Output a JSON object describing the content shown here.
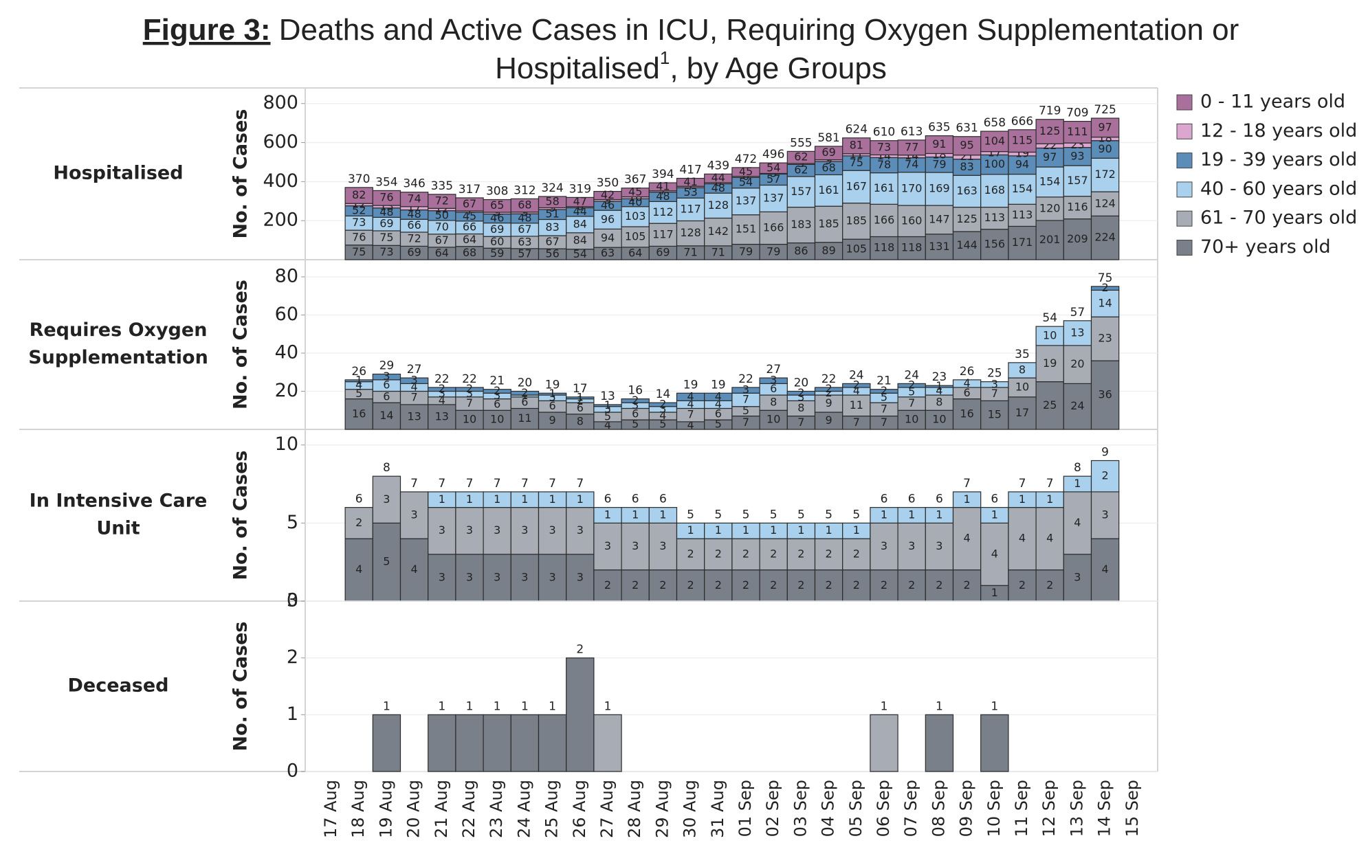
{
  "figure": {
    "label": "Figure 3:",
    "line1": "Deaths and Active Cases in ICU, Requiring Oxygen Supplementation or",
    "line2a": "Hospitalised",
    "sup": "1",
    "line2b": ", by Age Groups"
  },
  "chart_data": [
    {
      "type": "bar",
      "stacked": true,
      "title": [
        "Hospitalised"
      ],
      "ylabel": "No. of Cases",
      "segment_labels": true,
      "grid": true,
      "categories": [
        "17 Aug",
        "18 Aug",
        "19 Aug",
        "20 Aug",
        "21 Aug",
        "22 Aug",
        "23 Aug",
        "24 Aug",
        "25 Aug",
        "26 Aug",
        "27 Aug",
        "28 Aug",
        "29 Aug",
        "30 Aug",
        "31 Aug",
        "01 Sep",
        "02 Sep",
        "03 Sep",
        "04 Sep",
        "05 Sep",
        "06 Sep",
        "07 Sep",
        "08 Sep",
        "09 Sep",
        "10 Sep",
        "11 Sep",
        "12 Sep",
        "13 Sep",
        "14 Sep",
        "15 Sep"
      ],
      "ylim": [
        0,
        880
      ],
      "yticks": [
        200,
        400,
        600,
        800
      ],
      "series": [
        {
          "name": "70+ years old",
          "color": "#7a808a",
          "values": [
            null,
            75,
            73,
            69,
            64,
            68,
            59,
            57,
            56,
            54,
            63,
            64,
            69,
            71,
            71,
            79,
            79,
            86,
            89,
            105,
            118,
            118,
            131,
            144,
            156,
            171,
            201,
            209,
            224,
            null
          ]
        },
        {
          "name": "61 - 70 years old",
          "color": "#a8adb5",
          "values": [
            null,
            76,
            75,
            72,
            67,
            64,
            60,
            63,
            67,
            84,
            94,
            105,
            117,
            128,
            142,
            151,
            166,
            183,
            185,
            185,
            166,
            160,
            147,
            125,
            113,
            113,
            120,
            116,
            124,
            null
          ]
        },
        {
          "name": "40 - 60 years old",
          "color": "#a9d1ed",
          "values": [
            null,
            73,
            69,
            66,
            70,
            66,
            69,
            67,
            83,
            84,
            96,
            103,
            112,
            117,
            128,
            137,
            137,
            157,
            161,
            167,
            161,
            170,
            169,
            163,
            168,
            154,
            154,
            157,
            172,
            null
          ]
        },
        {
          "name": "19 - 39 years old",
          "color": "#5b8db8",
          "values": [
            null,
            52,
            48,
            48,
            50,
            45,
            46,
            48,
            51,
            44,
            46,
            40,
            48,
            53,
            48,
            54,
            57,
            62,
            68,
            75,
            78,
            74,
            79,
            83,
            100,
            94,
            97,
            93,
            90,
            null
          ]
        },
        {
          "name": "12 - 18 years old",
          "color": "#dba7cf",
          "values": [
            null,
            12,
            13,
            17,
            12,
            7,
            9,
            9,
            9,
            6,
            9,
            10,
            7,
            7,
            6,
            6,
            3,
            5,
            9,
            11,
            14,
            14,
            18,
            21,
            17,
            19,
            22,
            23,
            18,
            null
          ]
        },
        {
          "name": "0 - 11 years old",
          "color": "#a8709a",
          "values": [
            null,
            82,
            76,
            74,
            72,
            67,
            65,
            68,
            58,
            47,
            42,
            45,
            41,
            41,
            44,
            45,
            54,
            62,
            69,
            81,
            73,
            77,
            91,
            95,
            104,
            115,
            125,
            111,
            97,
            null
          ]
        }
      ],
      "totals": [
        null,
        370,
        354,
        346,
        335,
        317,
        308,
        312,
        324,
        319,
        350,
        367,
        394,
        417,
        439,
        472,
        496,
        555,
        581,
        624,
        610,
        613,
        635,
        631,
        658,
        666,
        719,
        709,
        725,
        null
      ]
    },
    {
      "type": "bar",
      "stacked": true,
      "title": [
        "Requires Oxygen",
        "Supplementation"
      ],
      "ylabel": "No. of Cases",
      "segment_labels": true,
      "grid": true,
      "categories": [
        "17 Aug",
        "18 Aug",
        "19 Aug",
        "20 Aug",
        "21 Aug",
        "22 Aug",
        "23 Aug",
        "24 Aug",
        "25 Aug",
        "26 Aug",
        "27 Aug",
        "28 Aug",
        "29 Aug",
        "30 Aug",
        "31 Aug",
        "01 Sep",
        "02 Sep",
        "03 Sep",
        "04 Sep",
        "05 Sep",
        "06 Sep",
        "07 Sep",
        "08 Sep",
        "09 Sep",
        "10 Sep",
        "11 Sep",
        "12 Sep",
        "13 Sep",
        "14 Sep",
        "15 Sep"
      ],
      "ylim": [
        0,
        89
      ],
      "yticks": [
        20,
        40,
        60,
        80
      ],
      "series": [
        {
          "name": "70+ years old",
          "color": "#7a808a",
          "values": [
            null,
            16,
            14,
            13,
            13,
            10,
            10,
            11,
            9,
            8,
            4,
            5,
            5,
            4,
            5,
            7,
            10,
            7,
            9,
            7,
            7,
            10,
            10,
            16,
            15,
            17,
            25,
            24,
            36,
            null
          ]
        },
        {
          "name": "61 - 70 years old",
          "color": "#a8adb5",
          "values": [
            null,
            5,
            6,
            7,
            4,
            7,
            6,
            6,
            6,
            6,
            5,
            6,
            4,
            7,
            6,
            5,
            8,
            8,
            9,
            11,
            7,
            7,
            8,
            6,
            7,
            10,
            19,
            20,
            23,
            null
          ]
        },
        {
          "name": "40 - 60 years old",
          "color": "#a9d1ed",
          "values": [
            null,
            4,
            6,
            4,
            3,
            3,
            3,
            1,
            3,
            2,
            3,
            3,
            3,
            4,
            4,
            7,
            6,
            3,
            2,
            4,
            5,
            5,
            4,
            4,
            3,
            8,
            10,
            13,
            14,
            null
          ]
        },
        {
          "name": "19 - 39 years old",
          "color": "#5b8db8",
          "values": [
            null,
            1,
            3,
            3,
            2,
            2,
            2,
            2,
            1,
            1,
            1,
            2,
            2,
            4,
            4,
            3,
            3,
            2,
            2,
            2,
            2,
            2,
            1,
            null,
            null,
            null,
            null,
            null,
            2,
            null
          ]
        }
      ],
      "totals": [
        null,
        26,
        29,
        27,
        22,
        22,
        21,
        20,
        19,
        17,
        13,
        16,
        14,
        19,
        19,
        22,
        27,
        20,
        22,
        24,
        21,
        24,
        23,
        26,
        25,
        35,
        54,
        57,
        75,
        null
      ]
    },
    {
      "type": "bar",
      "stacked": true,
      "title": [
        "In Intensive Care",
        "Unit"
      ],
      "ylabel": "No. of Cases",
      "segment_labels": true,
      "grid": true,
      "categories": [
        "17 Aug",
        "18 Aug",
        "19 Aug",
        "20 Aug",
        "21 Aug",
        "22 Aug",
        "23 Aug",
        "24 Aug",
        "25 Aug",
        "26 Aug",
        "27 Aug",
        "28 Aug",
        "29 Aug",
        "30 Aug",
        "31 Aug",
        "01 Sep",
        "02 Sep",
        "03 Sep",
        "04 Sep",
        "05 Sep",
        "06 Sep",
        "07 Sep",
        "08 Sep",
        "09 Sep",
        "10 Sep",
        "11 Sep",
        "12 Sep",
        "13 Sep",
        "14 Sep",
        "15 Sep"
      ],
      "ylim": [
        0,
        11
      ],
      "yticks": [
        0,
        5,
        10
      ],
      "series": [
        {
          "name": "70+ years old",
          "color": "#7a808a",
          "values": [
            null,
            4,
            5,
            4,
            3,
            3,
            3,
            3,
            3,
            3,
            2,
            2,
            2,
            2,
            2,
            2,
            2,
            2,
            2,
            2,
            2,
            2,
            2,
            2,
            1,
            2,
            2,
            3,
            4,
            null
          ]
        },
        {
          "name": "61 - 70 years old",
          "color": "#a8adb5",
          "values": [
            null,
            2,
            3,
            3,
            3,
            3,
            3,
            3,
            3,
            3,
            3,
            3,
            3,
            2,
            2,
            2,
            2,
            2,
            2,
            2,
            3,
            3,
            3,
            4,
            4,
            4,
            4,
            4,
            3,
            null
          ]
        },
        {
          "name": "40 - 60 years old",
          "color": "#a9d1ed",
          "values": [
            null,
            null,
            null,
            null,
            1,
            1,
            1,
            1,
            1,
            1,
            1,
            1,
            1,
            1,
            1,
            1,
            1,
            1,
            1,
            1,
            1,
            1,
            1,
            1,
            1,
            1,
            1,
            1,
            2,
            null
          ]
        }
      ],
      "totals": [
        null,
        6,
        8,
        7,
        7,
        7,
        7,
        7,
        7,
        7,
        6,
        6,
        6,
        5,
        5,
        5,
        5,
        5,
        5,
        5,
        6,
        6,
        6,
        7,
        6,
        7,
        7,
        8,
        9,
        null
      ]
    },
    {
      "type": "bar",
      "stacked": true,
      "title": [
        "Deceased"
      ],
      "ylabel": "No. of Cases",
      "segment_labels": false,
      "grid": true,
      "categories": [
        "17 Aug",
        "18 Aug",
        "19 Aug",
        "20 Aug",
        "21 Aug",
        "22 Aug",
        "23 Aug",
        "24 Aug",
        "25 Aug",
        "26 Aug",
        "27 Aug",
        "28 Aug",
        "29 Aug",
        "30 Aug",
        "31 Aug",
        "01 Sep",
        "02 Sep",
        "03 Sep",
        "04 Sep",
        "05 Sep",
        "06 Sep",
        "07 Sep",
        "08 Sep",
        "09 Sep",
        "10 Sep",
        "11 Sep",
        "12 Sep",
        "13 Sep",
        "14 Sep",
        "15 Sep"
      ],
      "ylim": [
        0,
        3
      ],
      "yticks": [
        0,
        1,
        2,
        3
      ],
      "series": [
        {
          "name": "70+ years old",
          "color": "#7a808a",
          "values": [
            null,
            null,
            1,
            null,
            1,
            1,
            1,
            1,
            1,
            2,
            null,
            null,
            null,
            null,
            null,
            null,
            null,
            null,
            null,
            null,
            null,
            null,
            1,
            null,
            1,
            null,
            null,
            null,
            null,
            null
          ]
        },
        {
          "name": "61 - 70 years old",
          "color": "#a8adb5",
          "values": [
            null,
            null,
            null,
            null,
            null,
            null,
            null,
            null,
            null,
            null,
            1,
            null,
            null,
            null,
            null,
            null,
            null,
            null,
            null,
            null,
            1,
            null,
            null,
            null,
            null,
            null,
            null,
            null,
            null,
            null
          ]
        }
      ],
      "totals": [
        null,
        null,
        1,
        null,
        1,
        1,
        1,
        1,
        1,
        2,
        1,
        null,
        null,
        null,
        null,
        null,
        null,
        null,
        null,
        null,
        1,
        null,
        1,
        null,
        1,
        null,
        null,
        null,
        null,
        null
      ]
    }
  ]
}
